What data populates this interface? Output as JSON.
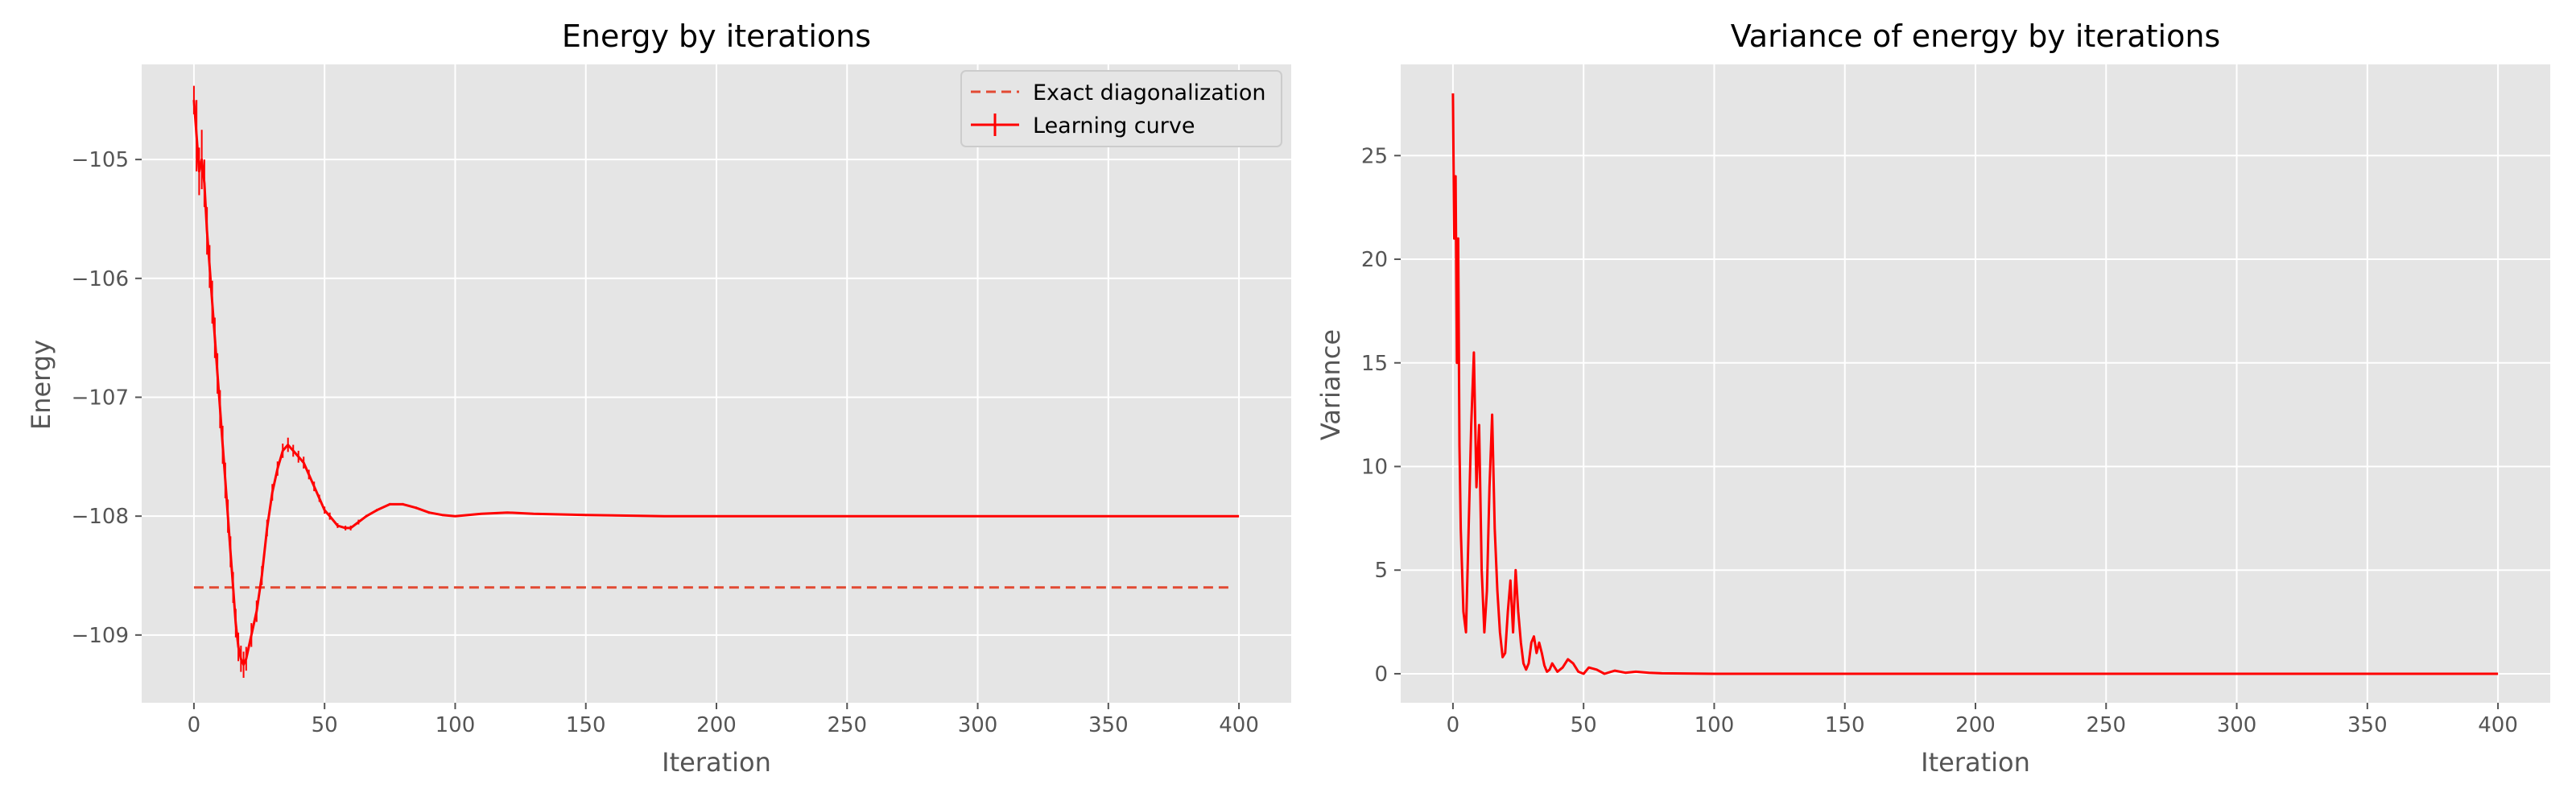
{
  "colors": {
    "background": "#e5e5e5",
    "grid": "#ffffff",
    "series": "#ff0000",
    "reference": "#e24a33"
  },
  "chart_data": [
    {
      "type": "line",
      "title": "Energy by iterations",
      "xlabel": "Iteration",
      "ylabel": "Energy",
      "xlim": [
        -20,
        420
      ],
      "ylim": [
        -109.57,
        -104.2
      ],
      "xticks": [
        0,
        50,
        100,
        150,
        200,
        250,
        300,
        350,
        400
      ],
      "yticks": [
        -109,
        -108,
        -107,
        -106,
        -105
      ],
      "ytick_labels": [
        "−109",
        "−108",
        "−107",
        "−106",
        "−105"
      ],
      "grid": true,
      "legend": {
        "position": "top-right",
        "entries": [
          "Exact diagonalization",
          "Learning curve"
        ]
      },
      "reference_line": {
        "name": "Exact diagonalization",
        "y": -108.6,
        "x_range": [
          0,
          397
        ],
        "style": "dashed"
      },
      "series": [
        {
          "name": "Learning curve",
          "has_error_bars": true,
          "x": [
            0,
            1,
            2,
            3,
            4,
            5,
            6,
            7,
            8,
            9,
            10,
            11,
            12,
            13,
            14,
            15,
            16,
            17,
            18,
            19,
            20,
            22,
            24,
            26,
            28,
            30,
            32,
            34,
            36,
            38,
            40,
            42,
            44,
            46,
            48,
            50,
            52,
            55,
            58,
            60,
            63,
            66,
            70,
            75,
            80,
            85,
            90,
            95,
            100,
            110,
            120,
            130,
            150,
            180,
            220,
            300,
            400
          ],
          "y": [
            -104.5,
            -104.8,
            -105.1,
            -105.0,
            -105.2,
            -105.6,
            -105.9,
            -106.2,
            -106.5,
            -106.8,
            -107.1,
            -107.4,
            -107.7,
            -108.0,
            -108.3,
            -108.6,
            -108.9,
            -109.1,
            -109.2,
            -109.25,
            -109.2,
            -109.0,
            -108.8,
            -108.5,
            -108.1,
            -107.8,
            -107.6,
            -107.45,
            -107.4,
            -107.45,
            -107.5,
            -107.55,
            -107.65,
            -107.75,
            -107.85,
            -107.95,
            -108.0,
            -108.08,
            -108.1,
            -108.1,
            -108.05,
            -108.0,
            -107.95,
            -107.9,
            -107.9,
            -107.93,
            -107.97,
            -107.99,
            -108.0,
            -107.98,
            -107.97,
            -107.98,
            -107.99,
            -108.0,
            -108.0,
            -108.0,
            -108.0
          ],
          "error": [
            0.12,
            0.3,
            0.2,
            0.25,
            0.2,
            0.2,
            0.18,
            0.18,
            0.17,
            0.17,
            0.16,
            0.16,
            0.15,
            0.14,
            0.13,
            0.13,
            0.12,
            0.12,
            0.11,
            0.11,
            0.1,
            0.1,
            0.09,
            0.08,
            0.07,
            0.07,
            0.06,
            0.06,
            0.06,
            0.05,
            0.05,
            0.05,
            0.04,
            0.04,
            0.03,
            0.03,
            0.03,
            0.02,
            0.02,
            0.02,
            0.02,
            0.01,
            0.01,
            0.01,
            0.01,
            0.01,
            0.01,
            0.0,
            0.0,
            0.0,
            0.0,
            0.0,
            0.0,
            0.0,
            0.0,
            0.0,
            0.0
          ]
        }
      ]
    },
    {
      "type": "line",
      "title": "Variance of energy by iterations",
      "xlabel": "Iteration",
      "ylabel": "Variance",
      "xlim": [
        -20,
        420
      ],
      "ylim": [
        -1.4,
        29.4
      ],
      "xticks": [
        0,
        50,
        100,
        150,
        200,
        250,
        300,
        350,
        400
      ],
      "yticks": [
        0,
        5,
        10,
        15,
        20,
        25
      ],
      "ytick_labels": [
        "0",
        "5",
        "10",
        "15",
        "20",
        "25"
      ],
      "grid": true,
      "series": [
        {
          "name": "Variance",
          "x": [
            0,
            0.5,
            1,
            1.5,
            2,
            2.5,
            3,
            4,
            5,
            6,
            7,
            8,
            9,
            10,
            11,
            12,
            13,
            14,
            15,
            16,
            17,
            18,
            19,
            20,
            21,
            22,
            23,
            24,
            25,
            26,
            27,
            28,
            29,
            30,
            31,
            32,
            33,
            34,
            35,
            36,
            37,
            38,
            40,
            42,
            44,
            46,
            48,
            50,
            52,
            55,
            58,
            62,
            66,
            70,
            75,
            80,
            100,
            150,
            400
          ],
          "y": [
            28.0,
            21.0,
            24.0,
            15.0,
            21.0,
            11.0,
            7.0,
            3.0,
            2.0,
            7.0,
            12.0,
            15.5,
            9.0,
            12.0,
            5.0,
            2.0,
            4.0,
            9.0,
            12.5,
            7.0,
            4.0,
            2.0,
            0.8,
            1.0,
            3.0,
            4.5,
            2.0,
            5.0,
            3.0,
            1.5,
            0.5,
            0.2,
            0.5,
            1.5,
            1.8,
            1.0,
            1.5,
            1.0,
            0.4,
            0.1,
            0.2,
            0.5,
            0.1,
            0.3,
            0.7,
            0.5,
            0.1,
            0.0,
            0.3,
            0.2,
            0.0,
            0.15,
            0.05,
            0.1,
            0.05,
            0.02,
            0.0,
            0.0,
            0.0
          ]
        }
      ]
    }
  ]
}
